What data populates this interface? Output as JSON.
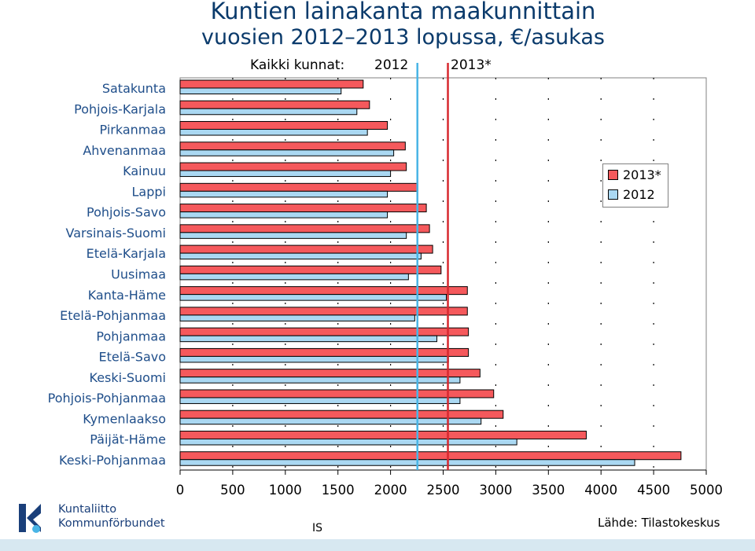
{
  "title": "Kuntien lainakanta maakunnittain",
  "subtitle": "vuosien 2012–2013 lopussa, €/asukas",
  "avg_label": "Kaikki kunnat:",
  "avg_2012_label": "2012",
  "avg_2013_label": "2013*",
  "logo": {
    "line1": "Kuntaliitto",
    "line2": "Kommunförbundet"
  },
  "is_mark": "IS",
  "source": "Lähde: Tilastokeskus",
  "colors": {
    "bar_2013": "#f5595c",
    "bar_2012": "#aad8f2",
    "avg_2013": "#d7282f",
    "avg_2012": "#49b5e6",
    "logo": "#1a3f7a"
  },
  "chart_data": {
    "type": "bar",
    "orientation": "horizontal",
    "categories": [
      "Satakunta",
      "Pohjois-Karjala",
      "Pirkanmaa",
      "Ahvenanmaa",
      "Kainuu",
      "Lappi",
      "Pohjois-Savo",
      "Varsinais-Suomi",
      "Etelä-Karjala",
      "Uusimaa",
      "Kanta-Häme",
      "Etelä-Pohjanmaa",
      "Pohjanmaa",
      "Etelä-Savo",
      "Keski-Suomi",
      "Pohjois-Pohjanmaa",
      "Kymenlaakso",
      "Päijät-Häme",
      "Keski-Pohjanmaa"
    ],
    "series": [
      {
        "name": "2013*",
        "values": [
          1740,
          1800,
          1970,
          2140,
          2150,
          2260,
          2340,
          2370,
          2400,
          2480,
          2730,
          2730,
          2740,
          2740,
          2850,
          2980,
          3070,
          3860,
          4760
        ]
      },
      {
        "name": "2012",
        "values": [
          1530,
          1680,
          1780,
          2030,
          2000,
          1970,
          1970,
          2150,
          2290,
          2170,
          2530,
          2230,
          2440,
          2550,
          2660,
          2660,
          2860,
          3200,
          4320
        ]
      }
    ],
    "averages": {
      "2012": 2255,
      "2013*": 2545
    },
    "xlim": [
      0,
      5000
    ],
    "xticks": [
      "0",
      "500",
      "1000",
      "1500",
      "2000",
      "2500",
      "3000",
      "3500",
      "4000",
      "4500",
      "5000"
    ],
    "legend_position": "top-right",
    "grid": true
  }
}
